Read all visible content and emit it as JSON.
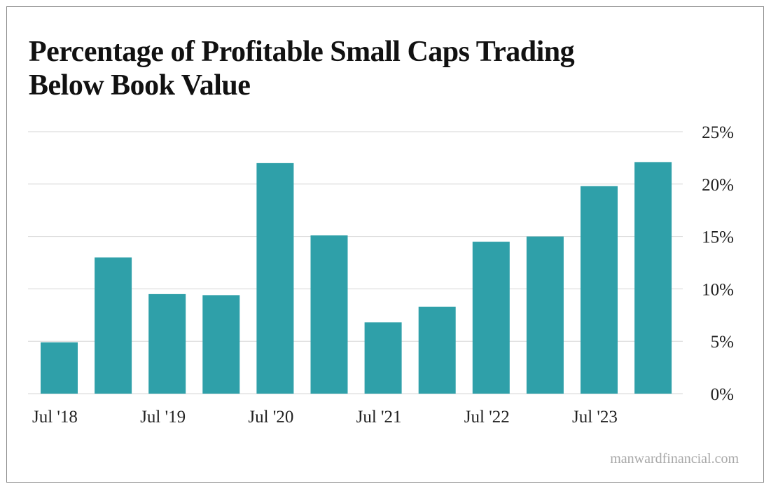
{
  "chart_data": {
    "type": "bar",
    "title": "Percentage of Profitable Small Caps Trading Below Book Value",
    "title_lines": [
      "Percentage of Profitable Small Caps Trading",
      "Below Book Value"
    ],
    "categories": [
      "Jul '18",
      "",
      "Jul '19",
      "",
      "Jul '20",
      "",
      "Jul '21",
      "",
      "Jul '22",
      "",
      "Jul '23",
      ""
    ],
    "values": [
      4.9,
      13.0,
      9.5,
      9.4,
      22.0,
      15.1,
      6.8,
      8.3,
      14.5,
      15.0,
      19.8,
      22.1
    ],
    "unit": "%",
    "ylim": [
      0,
      25
    ],
    "yticks": [
      "0%",
      "5%",
      "10%",
      "15%",
      "20%",
      "25%"
    ],
    "y_axis_position": "right",
    "grid": true,
    "bar_color": "#2fa0a9",
    "xlabel": "",
    "ylabel": ""
  },
  "source": "manwardfinancial.com"
}
